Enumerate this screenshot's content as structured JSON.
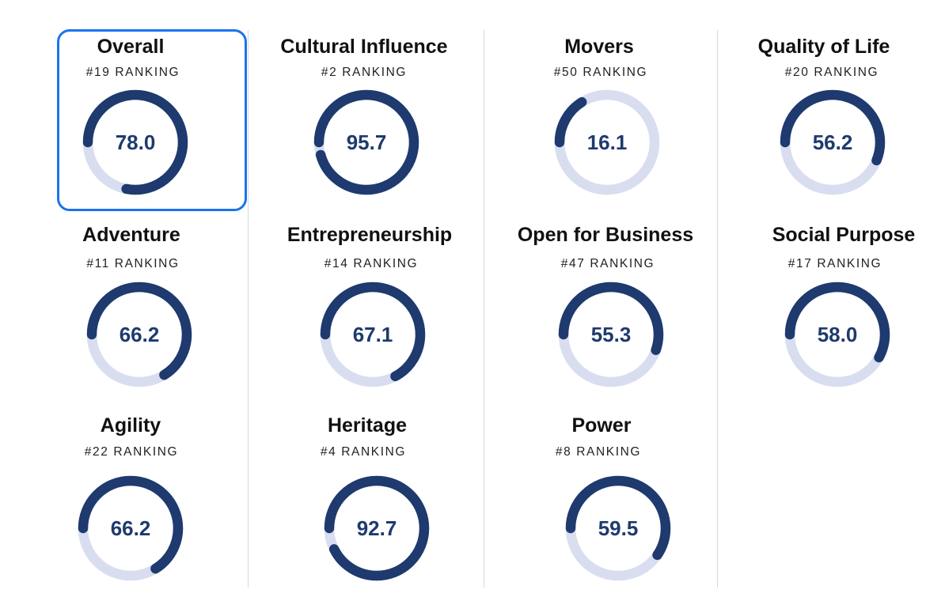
{
  "colors": {
    "progress": "#1e3a6e",
    "track": "#d8def0",
    "selected_border": "#1a73f0"
  },
  "metrics": [
    {
      "title": "Overall",
      "ranking": "#19 RANKING",
      "score": "78.0",
      "progress": 0.78,
      "selected": true
    },
    {
      "title": "Cultural Influence",
      "ranking": "#2 RANKING",
      "score": "95.7",
      "progress": 0.957,
      "selected": false
    },
    {
      "title": "Movers",
      "ranking": "#50 RANKING",
      "score": "16.1",
      "progress": 0.161,
      "selected": false
    },
    {
      "title": "Quality of Life",
      "ranking": "#20 RANKING",
      "score": "56.2",
      "progress": 0.562,
      "selected": false
    },
    {
      "title": "Adventure",
      "ranking": "#11 RANKING",
      "score": "66.2",
      "progress": 0.662,
      "selected": false
    },
    {
      "title": "Entrepreneurship",
      "ranking": "#14 RANKING",
      "score": "67.1",
      "progress": 0.671,
      "selected": false
    },
    {
      "title": "Open for Business",
      "ranking": "#47 RANKING",
      "score": "55.3",
      "progress": 0.553,
      "selected": false
    },
    {
      "title": "Social Purpose",
      "ranking": "#17 RANKING",
      "score": "58.0",
      "progress": 0.58,
      "selected": false
    },
    {
      "title": "Agility",
      "ranking": "#22 RANKING",
      "score": "66.2",
      "progress": 0.662,
      "selected": false
    },
    {
      "title": "Heritage",
      "ranking": "#4 RANKING",
      "score": "92.7",
      "progress": 0.927,
      "selected": false
    },
    {
      "title": "Power",
      "ranking": "#8 RANKING",
      "score": "59.5",
      "progress": 0.595,
      "selected": false
    }
  ]
}
